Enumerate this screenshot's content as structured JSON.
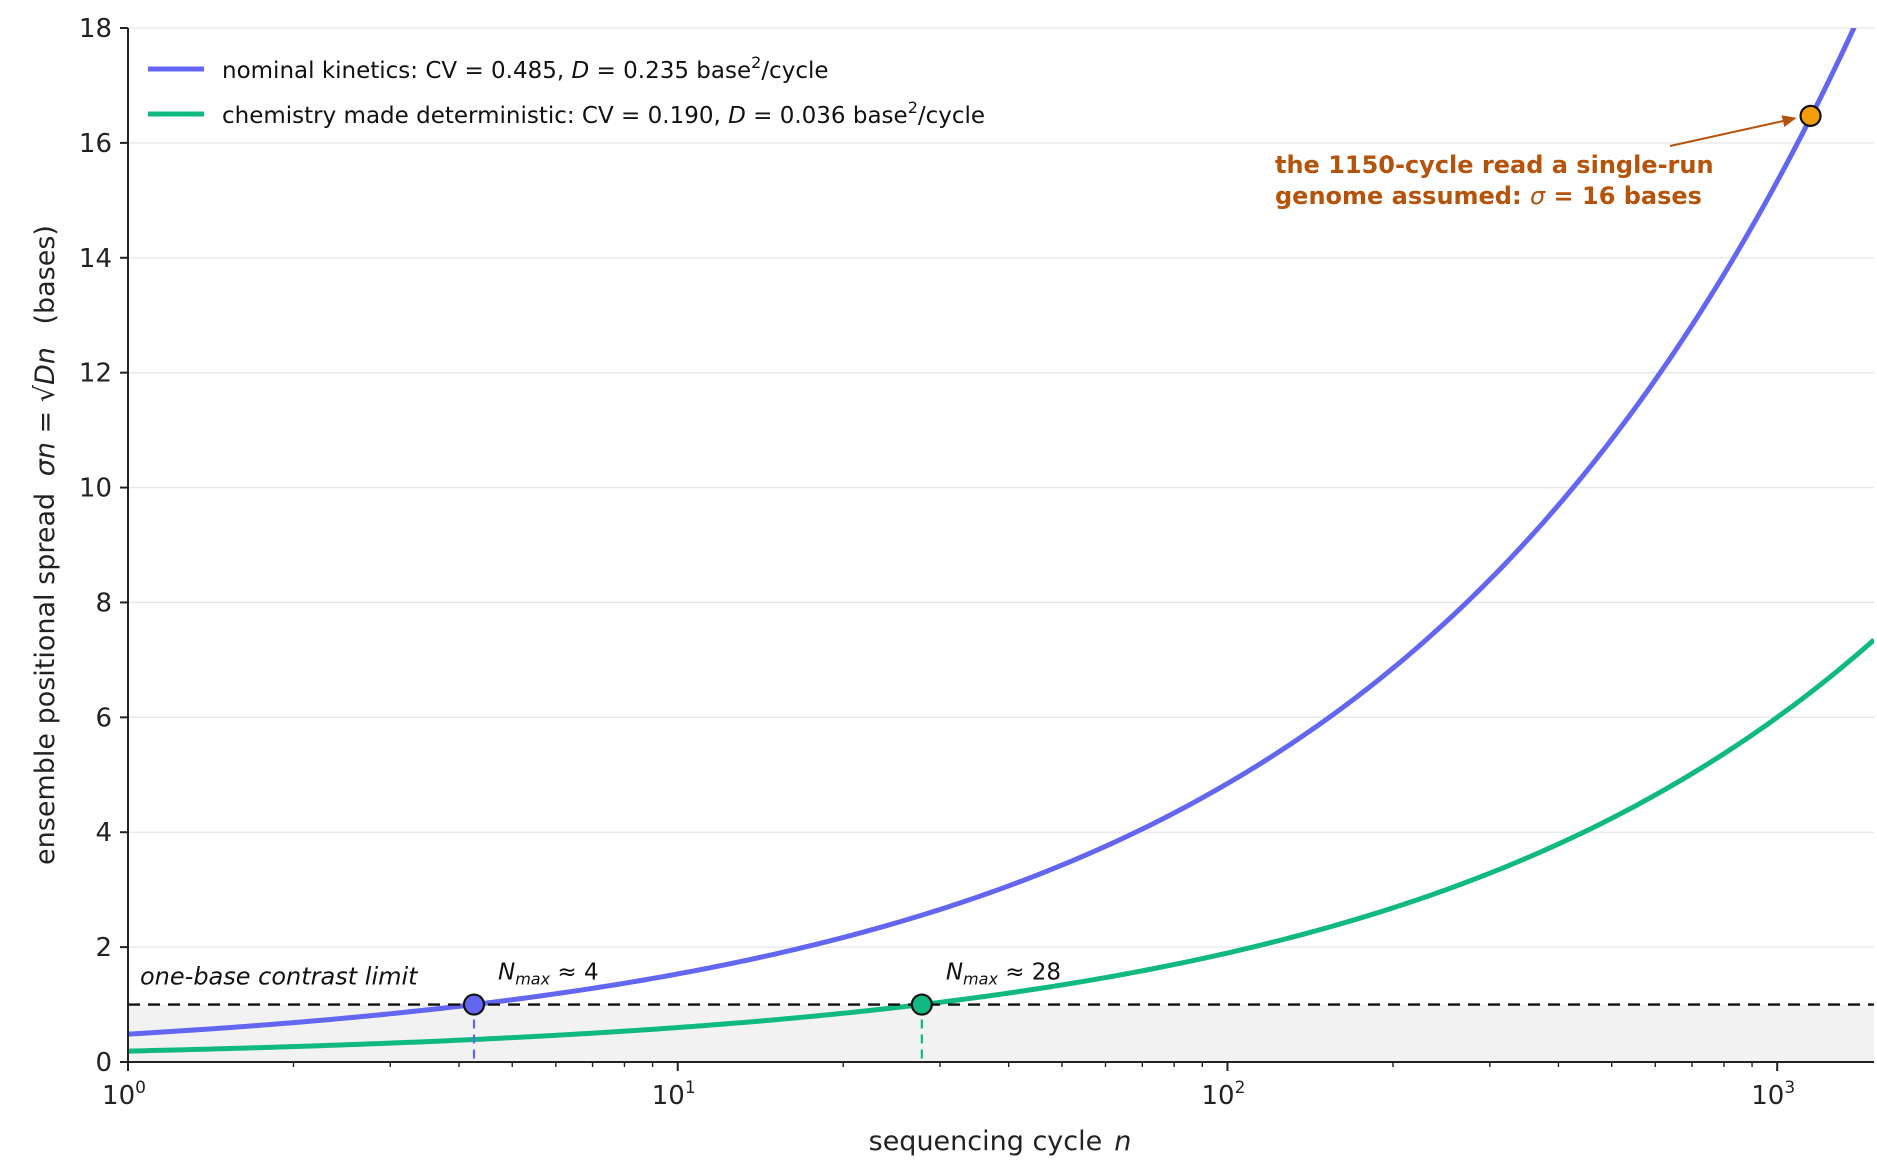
{
  "chart_data": {
    "type": "line",
    "xlabel": "sequencing cycle",
    "xlabel_var": "n",
    "ylabel": "ensemble positional spread",
    "ylabel_units": "(bases)",
    "ylabel_formula": "σn = √Dn",
    "x_scale": "log",
    "xlim": [
      1,
      1500
    ],
    "ylim": [
      0,
      18
    ],
    "x_ticks": [
      {
        "value": 1,
        "base": "10",
        "exp": "0"
      },
      {
        "value": 10,
        "base": "10",
        "exp": "1"
      },
      {
        "value": 100,
        "base": "10",
        "exp": "2"
      },
      {
        "value": 1000,
        "base": "10",
        "exp": "3"
      }
    ],
    "y_ticks": [
      0,
      2,
      4,
      6,
      8,
      10,
      12,
      14,
      16,
      18
    ],
    "y_tick_labels": [
      "0",
      "2",
      "4",
      "6",
      "8",
      "10",
      "12",
      "14",
      "16",
      "18"
    ],
    "grid": "horizontal",
    "legend_position": "top-left",
    "series": [
      {
        "name": "nominal kinetics",
        "label_pre": "nominal kinetics:  CV = 0.485,  ",
        "label_D": "D",
        "label_mid": " = 0.235 base",
        "label_sup": "2",
        "label_post": "/cycle",
        "color": "#6366f1",
        "cv": 0.485,
        "D": 0.235,
        "x": [
          1,
          2,
          4,
          10,
          20,
          50,
          100,
          200,
          500,
          1000,
          1500
        ],
        "y": [
          0.485,
          0.686,
          0.97,
          1.533,
          2.168,
          3.428,
          4.848,
          6.856,
          10.84,
          15.33,
          18.78
        ]
      },
      {
        "name": "chemistry made deterministic",
        "label_pre": "chemistry made deterministic:  CV = 0.190,  ",
        "label_D": "D",
        "label_mid": " = 0.036 base",
        "label_sup": "2",
        "label_post": "/cycle",
        "color": "#10b981",
        "cv": 0.19,
        "D": 0.036,
        "x": [
          1,
          2,
          5,
          10,
          28,
          50,
          100,
          200,
          500,
          1000,
          1500
        ],
        "y": [
          0.19,
          0.268,
          0.424,
          0.6,
          1.004,
          1.342,
          1.897,
          2.683,
          4.243,
          6.0,
          7.348
        ]
      }
    ],
    "threshold": {
      "y": 1,
      "label": "one-base contrast limit",
      "fill": "#f2f2f2"
    },
    "markers": [
      {
        "x": 4.26,
        "y": 1,
        "color": "#6366f1",
        "label_sym": "N",
        "label_sub": "max",
        "label_val": " ≈ 4"
      },
      {
        "x": 27.8,
        "y": 1,
        "color": "#10b981",
        "label_sym": "N",
        "label_sub": "max",
        "label_val": " ≈ 28"
      }
    ],
    "annotation": {
      "point": {
        "x": 1150,
        "y": 16.47
      },
      "color": "#b45309",
      "marker_color": "#f59e0b",
      "line1": "the 1150-cycle read a single-run",
      "line2_pre": "genome assumed: ",
      "line2_sym": "σ",
      "line2_post": " = 16 bases"
    }
  }
}
